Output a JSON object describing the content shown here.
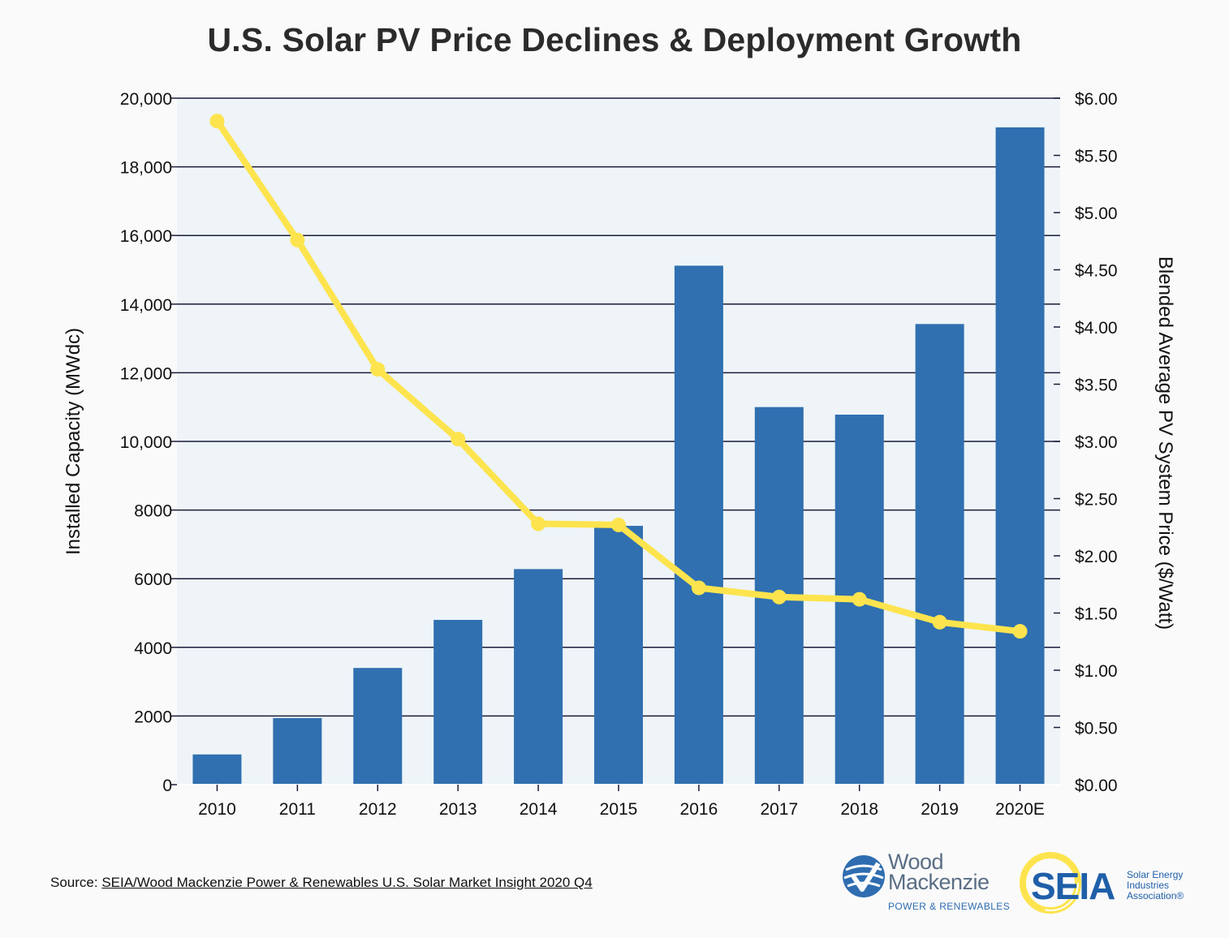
{
  "chart_data": {
    "type": "bar",
    "title": "U.S. Solar PV Price Declines & Deployment Growth",
    "categories": [
      "2010",
      "2011",
      "2012",
      "2013",
      "2014",
      "2015",
      "2016",
      "2017",
      "2018",
      "2019",
      "2020E"
    ],
    "series": [
      {
        "type": "bar",
        "axis": "left",
        "color": "#3070b0",
        "values": [
          880,
          1940,
          3400,
          4800,
          6280,
          7540,
          15120,
          11000,
          10780,
          13420,
          19150
        ]
      },
      {
        "type": "line",
        "axis": "right",
        "color": "#fde44e",
        "values": [
          5.8,
          4.76,
          3.63,
          3.02,
          2.28,
          2.27,
          1.72,
          1.64,
          1.62,
          1.42,
          1.34
        ]
      }
    ],
    "ylabel": "Installed Capacity (MWdc)",
    "y2label": "Blended Average PV System Price ($/Watt)",
    "ylim": [
      0,
      20000
    ],
    "y2lim": [
      0,
      6
    ],
    "y_ticks": [
      {
        "value": 0,
        "label": "0"
      },
      {
        "value": 2000,
        "label": "2000"
      },
      {
        "value": 4000,
        "label": "4000"
      },
      {
        "value": 6000,
        "label": "6000"
      },
      {
        "value": 8000,
        "label": "8000"
      },
      {
        "value": 10000,
        "label": "10,000"
      },
      {
        "value": 12000,
        "label": "12,000"
      },
      {
        "value": 14000,
        "label": "14,000"
      },
      {
        "value": 16000,
        "label": "16,000"
      },
      {
        "value": 18000,
        "label": "18,000"
      },
      {
        "value": 20000,
        "label": "20,000"
      }
    ],
    "y2_ticks": [
      {
        "value": 0,
        "label": "$0.00"
      },
      {
        "value": 0.5,
        "label": "$0.50"
      },
      {
        "value": 1,
        "label": "$1.00"
      },
      {
        "value": 1.5,
        "label": "$1.50"
      },
      {
        "value": 2,
        "label": "$2.00"
      },
      {
        "value": 2.5,
        "label": "$2.50"
      },
      {
        "value": 3,
        "label": "$3.00"
      },
      {
        "value": 3.5,
        "label": "$3.50"
      },
      {
        "value": 4,
        "label": "$4.00"
      },
      {
        "value": 4.5,
        "label": "$4.50"
      },
      {
        "value": 5,
        "label": "$5.00"
      },
      {
        "value": 5.5,
        "label": "$5.50"
      },
      {
        "value": 6,
        "label": "$6.00"
      }
    ],
    "grid": true,
    "plot_background": "#eef4f8"
  },
  "source": {
    "prefix": "Source: ",
    "link_text": "SEIA/Wood Mackenzie Power & Renewables U.S. Solar Market Insight 2020 Q4"
  },
  "logos": {
    "wood_mackenzie": {
      "name_line1": "Wood",
      "name_line2": "Mackenzie",
      "subtitle": "POWER & RENEWABLES"
    },
    "seia": {
      "word": "SEIA",
      "tagline": "Solar Energy\nIndustries\nAssociation®"
    }
  }
}
